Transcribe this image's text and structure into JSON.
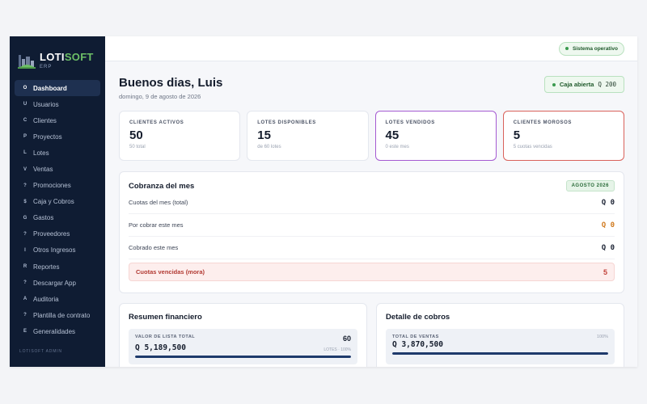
{
  "colors": {
    "sidebar_bg": "#0f1c33",
    "accent_green": "#6dbf67",
    "purple": "#a55ad2",
    "red": "#d9625b",
    "bar": "#1e3a6b"
  },
  "brand": {
    "name_a": "LOTI",
    "name_b": "SOFT",
    "sub": "ERP"
  },
  "sidebar": {
    "items": [
      {
        "glyph": "O",
        "label": "Dashboard",
        "icon": "dashboard-icon"
      },
      {
        "glyph": "U",
        "label": "Usuarios",
        "icon": "users-icon"
      },
      {
        "glyph": "C",
        "label": "Clientes",
        "icon": "clients-icon"
      },
      {
        "glyph": "P",
        "label": "Proyectos",
        "icon": "projects-icon"
      },
      {
        "glyph": "L",
        "label": "Lotes",
        "icon": "lots-icon"
      },
      {
        "glyph": "V",
        "label": "Ventas",
        "icon": "sales-icon"
      },
      {
        "glyph": "?",
        "label": "Promociones",
        "icon": "promotions-icon"
      },
      {
        "glyph": "$",
        "label": "Caja y Cobros",
        "icon": "cash-icon"
      },
      {
        "glyph": "G",
        "label": "Gastos",
        "icon": "expenses-icon"
      },
      {
        "glyph": "?",
        "label": "Proveedores",
        "icon": "suppliers-icon"
      },
      {
        "glyph": "I",
        "label": "Otros Ingresos",
        "icon": "income-icon"
      },
      {
        "glyph": "R",
        "label": "Reportes",
        "icon": "reports-icon"
      },
      {
        "glyph": "?",
        "label": "Descargar App",
        "icon": "download-icon"
      },
      {
        "glyph": "A",
        "label": "Auditoria",
        "icon": "audit-icon"
      },
      {
        "glyph": "?",
        "label": "Plantilla de contrato",
        "icon": "contract-icon"
      },
      {
        "glyph": "E",
        "label": "Generalidades",
        "icon": "general-icon"
      }
    ],
    "section_label": "LOTISOFT ADMIN"
  },
  "topbar": {
    "status": "Sistema operativo"
  },
  "header": {
    "greeting": "Buenos dias, Luis",
    "date": "domingo, 9 de agosto de 2026",
    "cash_label": "Caja abierta",
    "cash_value": "Q 200"
  },
  "stats": [
    {
      "label": "CLIENTES ACTIVOS",
      "value": "50",
      "sub": "50 total"
    },
    {
      "label": "LOTES DISPONIBLES",
      "value": "15",
      "sub": "de 60 lotes"
    },
    {
      "label": "LOTES VENDIDOS",
      "value": "45",
      "sub": "0 este mes"
    },
    {
      "label": "CLIENTES MOROSOS",
      "value": "5",
      "sub": "5 cuotas vencidas"
    }
  ],
  "cobranza": {
    "title": "Cobranza del mes",
    "badge": "AGOSTO 2026",
    "rows": [
      {
        "label": "Cuotas del mes (total)",
        "amount": "Q 0"
      },
      {
        "label": "Por cobrar este mes",
        "amount": "Q 0"
      },
      {
        "label": "Cobrado este mes",
        "amount": "Q 0"
      }
    ],
    "mora": {
      "label": "Cuotas vencidas (mora)",
      "amount": "5"
    }
  },
  "resumen": {
    "title": "Resumen financiero",
    "label": "VALOR DE LISTA TOTAL",
    "count": "60",
    "value": "Q 5,189,500",
    "note": "LOTES · 100%",
    "progress": 1.0
  },
  "detalle": {
    "title": "Detalle de cobros",
    "label": "TOTAL DE VENTAS",
    "pct": "100%",
    "value": "Q 3,870,500",
    "progress": 1.0
  }
}
